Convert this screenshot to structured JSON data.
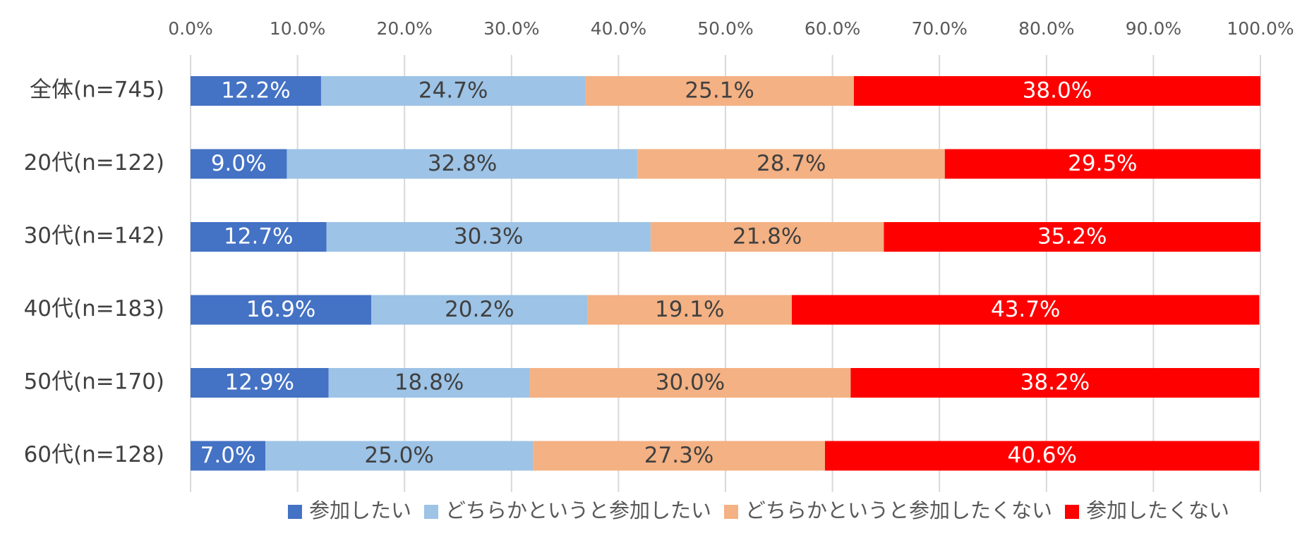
{
  "chart_data": {
    "type": "bar",
    "orientation": "horizontal",
    "stacked": true,
    "percent_stacked": true,
    "title": "",
    "xlabel": "",
    "ylabel": "",
    "xlim": [
      0,
      100
    ],
    "x_ticks": [
      "0.0%",
      "10.0%",
      "20.0%",
      "30.0%",
      "40.0%",
      "50.0%",
      "60.0%",
      "70.0%",
      "80.0%",
      "90.0%",
      "100.0%"
    ],
    "x_axis_position": "top",
    "grid": true,
    "legend_position": "bottom",
    "categories": [
      "全体(n=745)",
      "20代(n=122)",
      "30代(n=142)",
      "40代(n=183)",
      "50代(n=170)",
      "60代(n=128)"
    ],
    "series": [
      {
        "name": "参加したい",
        "color": "#4472c4",
        "label_color": "#ffffff",
        "values": [
          12.2,
          9.0,
          12.7,
          16.9,
          12.9,
          7.0
        ],
        "labels": [
          "12.2%",
          "9.0%",
          "12.7%",
          "16.9%",
          "12.9%",
          "7.0%"
        ]
      },
      {
        "name": "どちらかというと参加したい",
        "color": "#9dc3e6",
        "label_color": "#404040",
        "values": [
          24.7,
          32.8,
          30.3,
          20.2,
          18.8,
          25.0
        ],
        "labels": [
          "24.7%",
          "32.8%",
          "30.3%",
          "20.2%",
          "18.8%",
          "25.0%"
        ]
      },
      {
        "name": "どちらかというと参加したくない",
        "color": "#f4b183",
        "label_color": "#404040",
        "values": [
          25.1,
          28.7,
          21.8,
          19.1,
          30.0,
          27.3
        ],
        "labels": [
          "25.1%",
          "28.7%",
          "21.8%",
          "19.1%",
          "30.0%",
          "27.3%"
        ]
      },
      {
        "name": "参加したくない",
        "color": "#ff0000",
        "label_color": "#ffffff",
        "values": [
          38.0,
          29.5,
          35.2,
          43.7,
          38.2,
          40.6
        ],
        "labels": [
          "38.0%",
          "29.5%",
          "35.2%",
          "43.7%",
          "38.2%",
          "40.6%"
        ]
      }
    ]
  }
}
